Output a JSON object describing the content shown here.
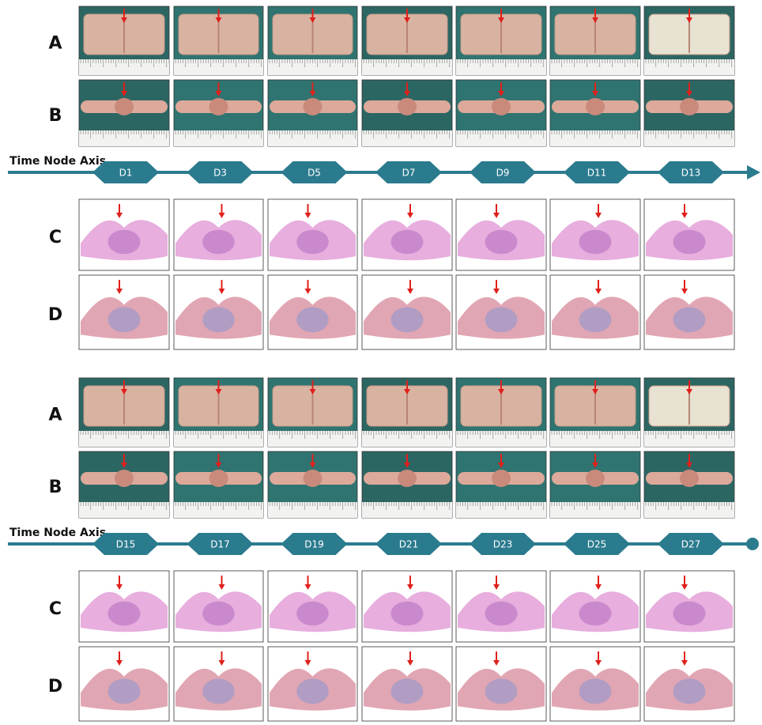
{
  "sections": [
    {
      "photo_rows": [
        "A",
        "B"
      ],
      "axis": {
        "title": "Time Node Axis",
        "days": [
          "D1",
          "D3",
          "D5",
          "D7",
          "D9",
          "D11",
          "D13"
        ]
      },
      "histology_rows": [
        "C",
        "D"
      ]
    },
    {
      "photo_rows": [
        "A",
        "B"
      ],
      "axis": {
        "title": "Time Node Axis",
        "days": [
          "D15",
          "D17",
          "D19",
          "D21",
          "D23",
          "D25",
          "D27"
        ]
      },
      "histology_rows": [
        "C",
        "D"
      ]
    }
  ]
}
